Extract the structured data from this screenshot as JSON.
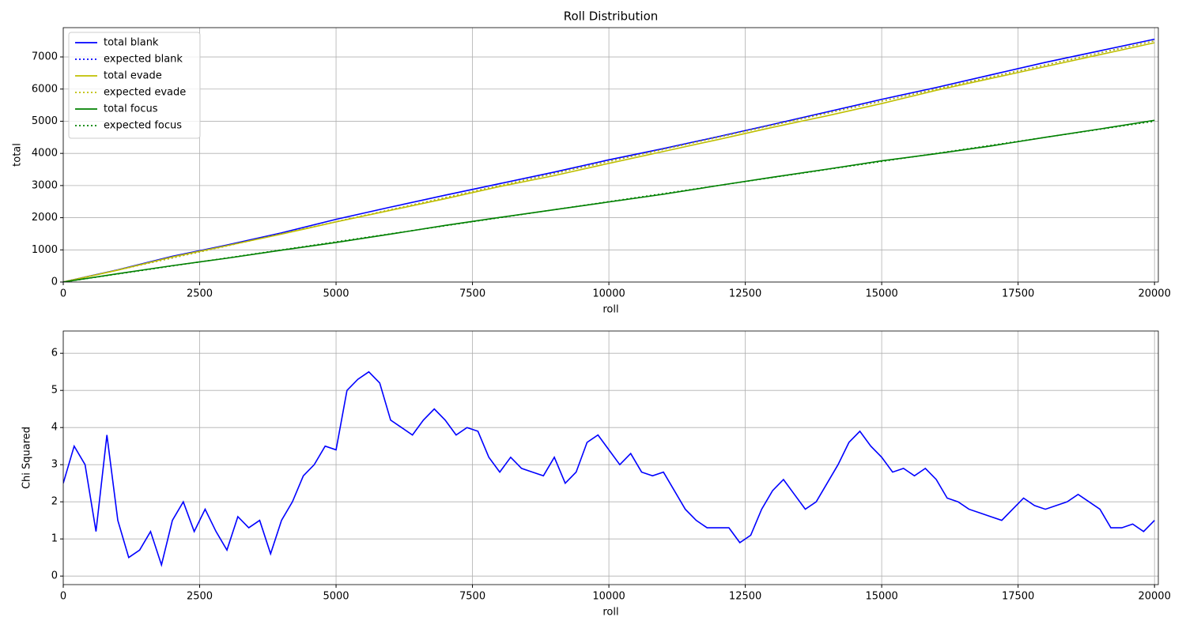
{
  "chart_data": [
    {
      "type": "line",
      "title": "Roll Distribution",
      "x_label": "roll",
      "y_label": "total",
      "x": [
        0,
        1000,
        2000,
        3000,
        4000,
        5000,
        6000,
        7000,
        8000,
        9000,
        10000,
        11000,
        12000,
        13000,
        14000,
        15000,
        16000,
        17000,
        18000,
        19000,
        20000
      ],
      "series": [
        {
          "name": "total blank",
          "color": "#0000ff",
          "style": "solid",
          "values": [
            0,
            380,
            800,
            1150,
            1530,
            1950,
            2330,
            2700,
            3060,
            3420,
            3800,
            4150,
            4520,
            4900,
            5290,
            5680,
            6050,
            6440,
            6830,
            7190,
            7550
          ]
        },
        {
          "name": "expected blank",
          "color": "#0000ff",
          "style": "dotted",
          "values": [
            0,
            375,
            750,
            1125,
            1500,
            1875,
            2250,
            2625,
            3000,
            3375,
            3750,
            4125,
            4500,
            4875,
            5250,
            5625,
            6000,
            6375,
            6750,
            7125,
            7500
          ]
        },
        {
          "name": "total evade",
          "color": "#bfbf00",
          "style": "solid",
          "values": [
            0,
            370,
            780,
            1130,
            1490,
            1870,
            2230,
            2590,
            2970,
            3310,
            3690,
            4060,
            4430,
            4810,
            5170,
            5550,
            5960,
            6330,
            6700,
            7070,
            7440
          ]
        },
        {
          "name": "expected evade",
          "color": "#bfbf00",
          "style": "dotted",
          "values": [
            0,
            375,
            750,
            1125,
            1500,
            1875,
            2250,
            2625,
            3000,
            3375,
            3750,
            4125,
            4500,
            4875,
            5250,
            5625,
            6000,
            6375,
            6750,
            7125,
            7500
          ]
        },
        {
          "name": "total focus",
          "color": "#008000",
          "style": "solid",
          "values": [
            0,
            260,
            510,
            740,
            990,
            1230,
            1490,
            1760,
            2010,
            2250,
            2490,
            2730,
            3000,
            3260,
            3510,
            3770,
            3990,
            4230,
            4500,
            4760,
            5030
          ]
        },
        {
          "name": "expected focus",
          "color": "#008000",
          "style": "dotted",
          "values": [
            0,
            250,
            500,
            750,
            1000,
            1250,
            1500,
            1750,
            2000,
            2250,
            2500,
            2750,
            3000,
            3250,
            3500,
            3750,
            4000,
            4250,
            4500,
            4750,
            5000
          ]
        }
      ],
      "xlim": [
        0,
        20070
      ],
      "xticks": [
        0,
        2500,
        5000,
        7500,
        10000,
        12500,
        15000,
        17500,
        20000
      ],
      "ylim": [
        0,
        7910
      ],
      "yticks": [
        0,
        1000,
        2000,
        3000,
        4000,
        5000,
        6000,
        7000
      ],
      "grid": true,
      "legend": "upper left"
    },
    {
      "type": "line",
      "x_label": "roll",
      "y_label": "Chi Squared",
      "x": [
        0,
        200,
        400,
        600,
        800,
        1000,
        1200,
        1400,
        1600,
        1800,
        2000,
        2200,
        2400,
        2600,
        2800,
        3000,
        3200,
        3400,
        3600,
        3800,
        4000,
        4200,
        4400,
        4600,
        4800,
        5000,
        5200,
        5400,
        5600,
        5800,
        6000,
        6200,
        6400,
        6600,
        6800,
        7000,
        7200,
        7400,
        7600,
        7800,
        8000,
        8200,
        8400,
        8600,
        8800,
        9000,
        9200,
        9400,
        9600,
        9800,
        10000,
        10200,
        10400,
        10600,
        10800,
        11000,
        11200,
        11400,
        11600,
        11800,
        12000,
        12200,
        12400,
        12600,
        12800,
        13000,
        13200,
        13400,
        13600,
        13800,
        14000,
        14200,
        14400,
        14600,
        14800,
        15000,
        15200,
        15400,
        15600,
        15800,
        16000,
        16200,
        16400,
        16600,
        16800,
        17000,
        17200,
        17400,
        17600,
        17800,
        18000,
        18200,
        18400,
        18600,
        18800,
        19000,
        19200,
        19400,
        19600,
        19800,
        20000
      ],
      "series": [
        {
          "name": "chi squared",
          "color": "#0000ff",
          "style": "solid",
          "values": [
            2.5,
            3.5,
            3.0,
            1.2,
            3.8,
            1.5,
            0.5,
            0.7,
            1.2,
            0.3,
            1.5,
            2.0,
            1.2,
            1.8,
            1.2,
            0.7,
            1.6,
            1.3,
            1.5,
            0.6,
            1.5,
            2.0,
            2.7,
            3.0,
            3.5,
            3.4,
            5.0,
            5.3,
            5.5,
            5.2,
            4.2,
            4.0,
            3.8,
            4.2,
            4.5,
            4.2,
            3.8,
            4.0,
            3.9,
            3.2,
            2.8,
            3.2,
            2.9,
            2.8,
            2.7,
            3.2,
            2.5,
            2.8,
            3.6,
            3.8,
            3.4,
            3.0,
            3.3,
            2.8,
            2.7,
            2.8,
            2.3,
            1.8,
            1.5,
            1.3,
            1.3,
            1.3,
            0.9,
            1.1,
            1.8,
            2.3,
            2.6,
            2.2,
            1.8,
            2.0,
            2.5,
            3.0,
            3.6,
            3.9,
            3.5,
            3.2,
            2.8,
            2.9,
            2.7,
            2.9,
            2.6,
            2.1,
            2.0,
            1.8,
            1.7,
            1.6,
            1.5,
            1.8,
            2.1,
            1.9,
            1.8,
            1.9,
            2.0,
            2.2,
            2.0,
            1.8,
            1.3,
            1.3,
            1.4,
            1.2,
            1.5
          ]
        }
      ],
      "xlim": [
        0,
        20070
      ],
      "xticks": [
        0,
        2500,
        5000,
        7500,
        10000,
        12500,
        15000,
        17500,
        20000
      ],
      "ylim": [
        -0.23,
        6.6
      ],
      "yticks": [
        0,
        1,
        2,
        3,
        4,
        5,
        6
      ],
      "grid": true
    }
  ]
}
